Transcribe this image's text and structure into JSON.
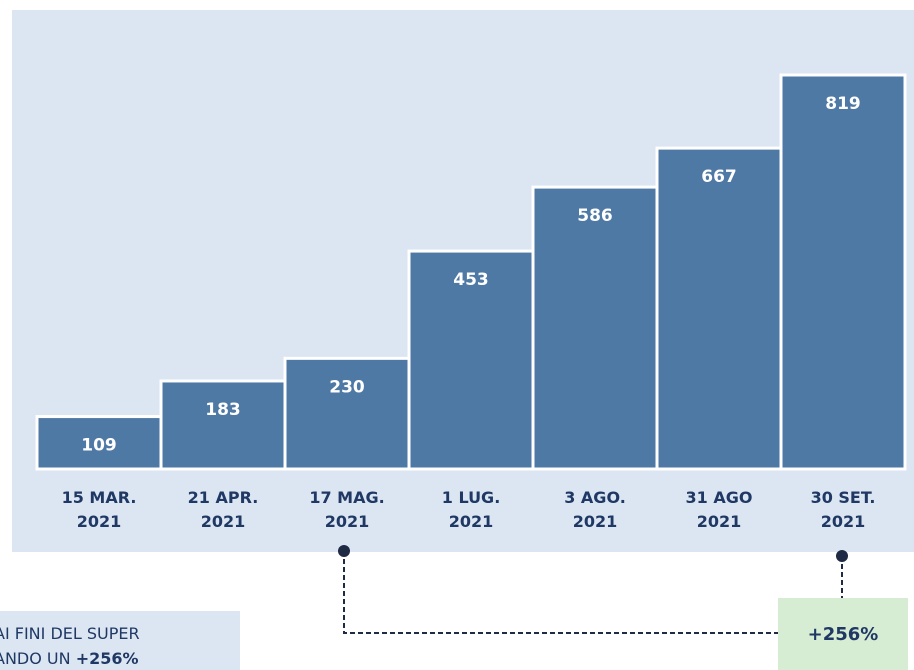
{
  "chart_data": {
    "type": "bar",
    "categories": [
      "15 MAR.\n2021",
      "21 APR.\n2021",
      "17 MAG.\n2021",
      "1 LUG.\n2021",
      "3 AGO.\n2021",
      "31 AGO\n2021",
      "30 SET.\n2021"
    ],
    "values": [
      109,
      183,
      230,
      453,
      586,
      667,
      819
    ],
    "color": "#4f79a5",
    "annotation": "+256%",
    "note": {
      "line1": "AI FINI DEL SUPER",
      "line2": "ANDO UN",
      "highlight": "+256%"
    }
  }
}
